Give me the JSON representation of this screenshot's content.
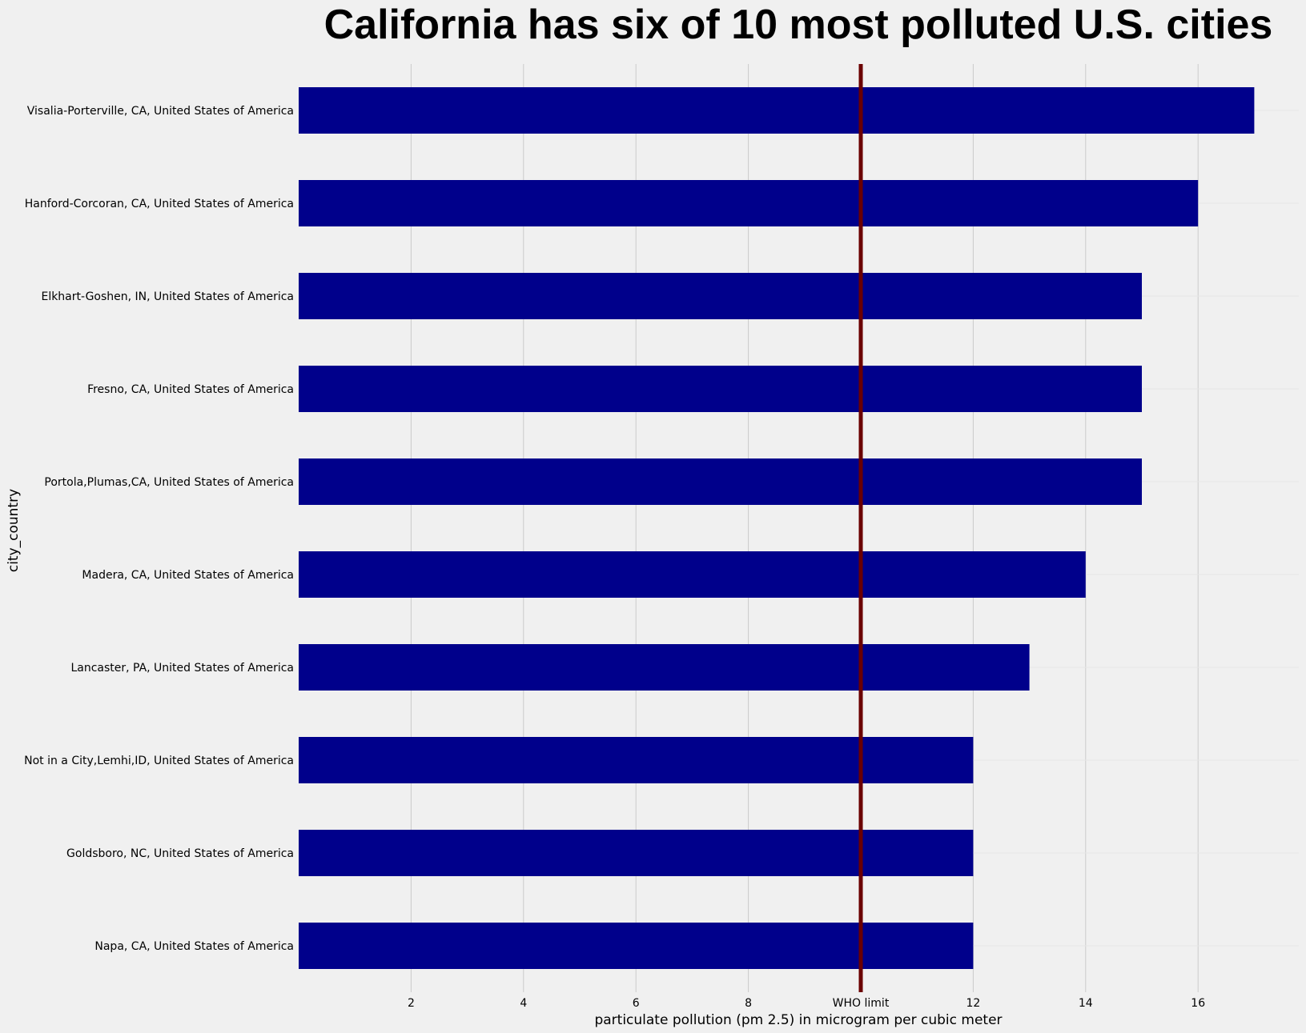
{
  "chart_data": {
    "type": "bar",
    "orientation": "horizontal",
    "title": "California has six of 10 most polluted U.S. cities",
    "xlabel": "particulate pollution (pm 2.5) in microgram per cubic meter",
    "ylabel": "city_country",
    "categories": [
      "Visalia-Porterville, CA, United States of America",
      "Hanford-Corcoran, CA, United States of America",
      "Elkhart-Goshen, IN, United States of America",
      "Fresno, CA, United States of America",
      "Portola,Plumas,CA, United States of America",
      "Madera, CA, United States of America",
      "Lancaster, PA, United States of America",
      "Not in a City,Lemhi,ID, United States of America",
      "Goldsboro, NC, United States of America",
      "Napa, CA, United States of America"
    ],
    "values": [
      17,
      16,
      15,
      15,
      15,
      14,
      13,
      12,
      12,
      12
    ],
    "xlim": [
      0,
      17.8
    ],
    "x_ticks": [
      {
        "value": 2,
        "label": "2"
      },
      {
        "value": 4,
        "label": "4"
      },
      {
        "value": 6,
        "label": "6"
      },
      {
        "value": 8,
        "label": "8"
      },
      {
        "value": 10,
        "label": "WHO limit"
      },
      {
        "value": 12,
        "label": "12"
      },
      {
        "value": 14,
        "label": "14"
      },
      {
        "value": 16,
        "label": "16"
      }
    ],
    "reference_line": {
      "value": 10,
      "color": "#6b0000"
    },
    "bar_color": "#00008b",
    "background_color": "#f0f0f0",
    "grid": true,
    "grid_color": "#cbcbcb"
  }
}
